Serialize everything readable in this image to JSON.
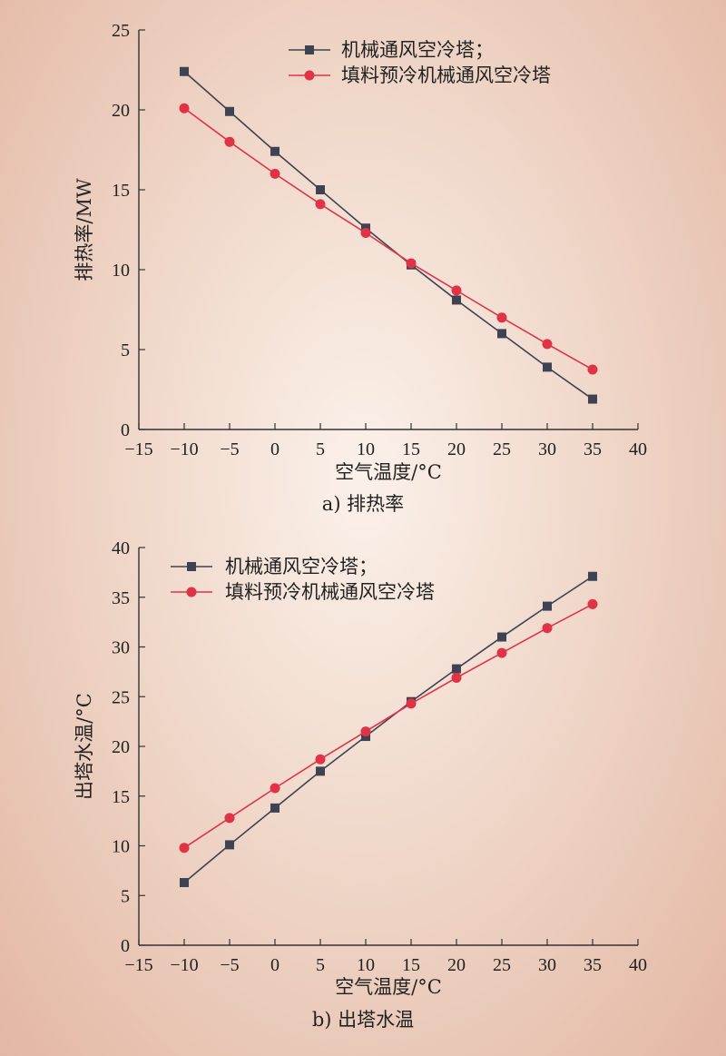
{
  "colors": {
    "series1": "#3f4250",
    "series2": "#e03347",
    "axis": "#333333"
  },
  "chart_data": [
    {
      "type": "line",
      "caption": "a) 排热率",
      "xlabel": "空气温度/°C",
      "ylabel": "排热率/MW",
      "xlim": [
        -15,
        40
      ],
      "ylim": [
        0,
        25
      ],
      "xticks": [
        -15,
        -10,
        -5,
        0,
        5,
        10,
        15,
        20,
        25,
        30,
        35,
        40
      ],
      "xtick_labels": [
        "−15",
        "−10",
        "−5",
        "0",
        "5",
        "10",
        "15",
        "20",
        "25",
        "30",
        "35",
        "40"
      ],
      "yticks": [
        0,
        5,
        10,
        15,
        20,
        25
      ],
      "ytick_labels": [
        "0",
        "5",
        "10",
        "15",
        "20",
        "25"
      ],
      "legend_position": "top-center",
      "x": [
        -10,
        -5,
        0,
        5,
        10,
        15,
        20,
        25,
        30,
        35
      ],
      "series": [
        {
          "name": "机械通风空冷塔；",
          "marker": "square",
          "color": "#3f4250",
          "values": [
            22.4,
            19.9,
            17.4,
            15.0,
            12.6,
            10.3,
            8.1,
            6.0,
            3.9,
            1.9
          ]
        },
        {
          "name": "填料预冷机械通风空冷塔",
          "marker": "circle",
          "color": "#e03347",
          "values": [
            20.1,
            18.0,
            16.0,
            14.1,
            12.3,
            10.4,
            8.7,
            7.0,
            5.35,
            3.75
          ]
        }
      ]
    },
    {
      "type": "line",
      "caption": "b) 出塔水温",
      "xlabel": "空气温度/°C",
      "ylabel": "出塔水温/°C",
      "xlim": [
        -15,
        40
      ],
      "ylim": [
        0,
        40
      ],
      "xticks": [
        -15,
        -10,
        -5,
        0,
        5,
        10,
        15,
        20,
        25,
        30,
        35,
        40
      ],
      "xtick_labels": [
        "−15",
        "−10",
        "−5",
        "0",
        "5",
        "10",
        "15",
        "20",
        "25",
        "30",
        "35",
        "40"
      ],
      "yticks": [
        0,
        5,
        10,
        15,
        20,
        25,
        30,
        35,
        40
      ],
      "ytick_labels": [
        "0",
        "5",
        "10",
        "15",
        "20",
        "25",
        "30",
        "35",
        "40"
      ],
      "legend_position": "top-left",
      "x": [
        -10,
        -5,
        0,
        5,
        10,
        15,
        20,
        25,
        30,
        35
      ],
      "series": [
        {
          "name": "机械通风空冷塔；",
          "marker": "square",
          "color": "#3f4250",
          "values": [
            6.3,
            10.1,
            13.8,
            17.5,
            21.0,
            24.5,
            27.8,
            31.0,
            34.1,
            37.1
          ]
        },
        {
          "name": "填料预冷机械通风空冷塔",
          "marker": "circle",
          "color": "#e03347",
          "values": [
            9.8,
            12.8,
            15.8,
            18.7,
            21.5,
            24.3,
            26.9,
            29.4,
            31.9,
            34.3
          ]
        }
      ]
    }
  ]
}
